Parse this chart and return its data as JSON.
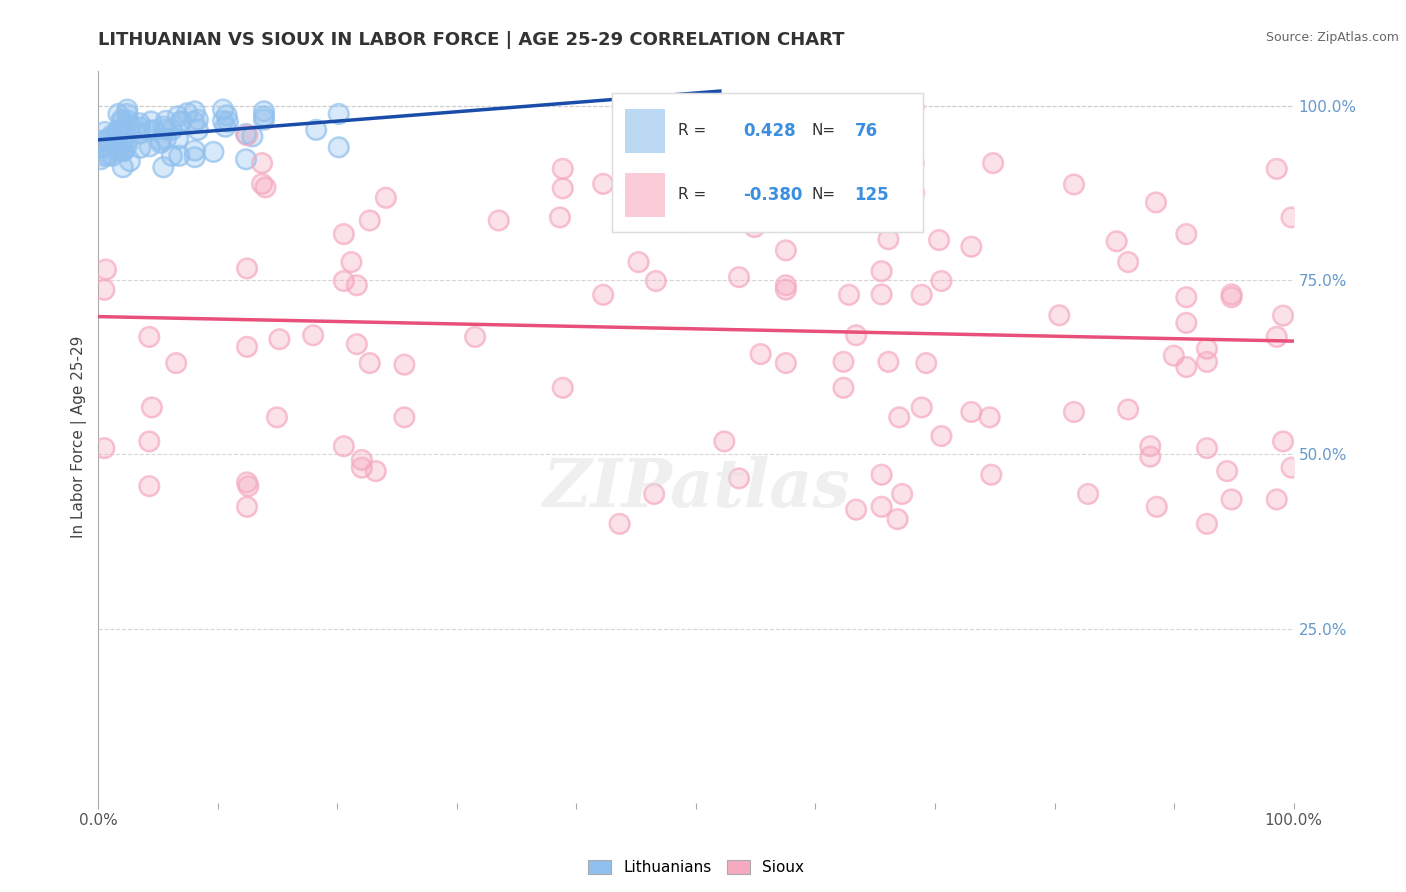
{
  "title": "LITHUANIAN VS SIOUX IN LABOR FORCE | AGE 25-29 CORRELATION CHART",
  "source": "Source: ZipAtlas.com",
  "ylabel": "In Labor Force | Age 25-29",
  "r_lithuanian": 0.428,
  "n_lithuanian": 76,
  "r_sioux": -0.38,
  "n_sioux": 125,
  "color_lithuanian": "#90C0EE",
  "color_sioux": "#F5AABF",
  "trendline_lithuanian": "#1A4DAA",
  "trendline_sioux": "#E8507A",
  "background": "#FFFFFF",
  "seed": 99
}
